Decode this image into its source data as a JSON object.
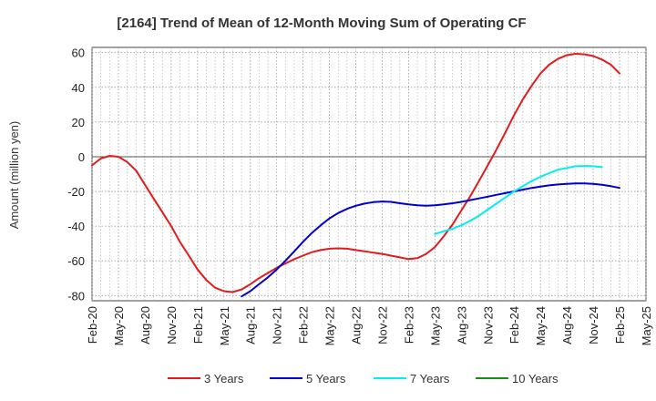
{
  "chart_data": {
    "type": "line",
    "title": "[2164]  Trend of Mean of 12-Month Moving Sum of Operating CF",
    "xlabel": "",
    "ylabel": "Amount (million yen)",
    "ylim": [
      -83,
      63
    ],
    "yticks": [
      60,
      40,
      20,
      0,
      -20,
      -40,
      -60,
      -80
    ],
    "grid": true,
    "legend_position": "bottom",
    "x_labels": [
      "Feb-20",
      "May-20",
      "Aug-20",
      "Nov-20",
      "Feb-21",
      "May-21",
      "Aug-21",
      "Nov-21",
      "Feb-22",
      "May-22",
      "Aug-22",
      "Nov-22",
      "Feb-23",
      "May-23",
      "Aug-23",
      "Nov-23",
      "Feb-24",
      "May-24",
      "Aug-24",
      "Nov-24",
      "Feb-25",
      "May-25"
    ],
    "series": [
      {
        "name": "3 Years",
        "color": "#e31a1c",
        "points": [
          [
            0,
            -5
          ],
          [
            0.33,
            -1
          ],
          [
            0.67,
            0.5
          ],
          [
            1,
            0
          ],
          [
            1.33,
            -3
          ],
          [
            1.67,
            -8
          ],
          [
            2,
            -16
          ],
          [
            2.33,
            -24
          ],
          [
            2.67,
            -32
          ],
          [
            3,
            -40
          ],
          [
            3.33,
            -49
          ],
          [
            3.67,
            -57
          ],
          [
            4,
            -65
          ],
          [
            4.33,
            -71
          ],
          [
            4.67,
            -75.5
          ],
          [
            5,
            -77.5
          ],
          [
            5.33,
            -78
          ],
          [
            5.67,
            -76.5
          ],
          [
            6,
            -73.5
          ],
          [
            6.33,
            -70
          ],
          [
            6.67,
            -67
          ],
          [
            7,
            -64
          ],
          [
            7.33,
            -61.5
          ],
          [
            7.67,
            -59
          ],
          [
            8,
            -57
          ],
          [
            8.33,
            -55
          ],
          [
            8.67,
            -53.8
          ],
          [
            9,
            -53
          ],
          [
            9.33,
            -52.8
          ],
          [
            9.67,
            -53
          ],
          [
            10,
            -53.8
          ],
          [
            10.33,
            -54.5
          ],
          [
            10.67,
            -55.3
          ],
          [
            11,
            -56
          ],
          [
            11.33,
            -57
          ],
          [
            11.67,
            -58
          ],
          [
            12,
            -59
          ],
          [
            12.33,
            -58.5
          ],
          [
            12.67,
            -56
          ],
          [
            13,
            -52
          ],
          [
            13.33,
            -46
          ],
          [
            13.67,
            -39
          ],
          [
            14,
            -31
          ],
          [
            14.33,
            -23
          ],
          [
            14.67,
            -14
          ],
          [
            15,
            -5
          ],
          [
            15.33,
            4
          ],
          [
            15.67,
            14
          ],
          [
            16,
            24
          ],
          [
            16.33,
            33
          ],
          [
            16.67,
            41
          ],
          [
            17,
            48
          ],
          [
            17.33,
            53
          ],
          [
            17.67,
            56.5
          ],
          [
            18,
            58.5
          ],
          [
            18.33,
            59.3
          ],
          [
            18.67,
            59
          ],
          [
            19,
            58
          ],
          [
            19.33,
            56
          ],
          [
            19.67,
            53
          ],
          [
            20,
            48
          ]
        ]
      },
      {
        "name": "5 Years",
        "color": "#0000cc",
        "points": [
          [
            5.67,
            -80.5
          ],
          [
            6,
            -77.5
          ],
          [
            6.33,
            -73.5
          ],
          [
            6.67,
            -69.5
          ],
          [
            7,
            -65
          ],
          [
            7.33,
            -60
          ],
          [
            7.67,
            -54.5
          ],
          [
            8,
            -49
          ],
          [
            8.33,
            -44
          ],
          [
            8.67,
            -39.5
          ],
          [
            9,
            -35.5
          ],
          [
            9.33,
            -32.5
          ],
          [
            9.67,
            -30
          ],
          [
            10,
            -28.3
          ],
          [
            10.33,
            -27
          ],
          [
            10.67,
            -26.2
          ],
          [
            11,
            -25.8
          ],
          [
            11.33,
            -26
          ],
          [
            11.67,
            -26.8
          ],
          [
            12,
            -27.5
          ],
          [
            12.33,
            -28
          ],
          [
            12.67,
            -28.2
          ],
          [
            13,
            -28
          ],
          [
            13.33,
            -27.5
          ],
          [
            13.67,
            -26.8
          ],
          [
            14,
            -26
          ],
          [
            14.33,
            -25
          ],
          [
            14.67,
            -24
          ],
          [
            15,
            -23
          ],
          [
            15.33,
            -22
          ],
          [
            15.67,
            -21
          ],
          [
            16,
            -20
          ],
          [
            16.33,
            -19
          ],
          [
            16.67,
            -18
          ],
          [
            17,
            -17.2
          ],
          [
            17.33,
            -16.5
          ],
          [
            17.67,
            -16
          ],
          [
            18,
            -15.6
          ],
          [
            18.33,
            -15.4
          ],
          [
            18.67,
            -15.4
          ],
          [
            19,
            -15.6
          ],
          [
            19.33,
            -16.2
          ],
          [
            19.67,
            -17
          ],
          [
            20,
            -18
          ]
        ]
      },
      {
        "name": "7 Years",
        "color": "#00eeee",
        "points": [
          [
            13,
            -44.5
          ],
          [
            13.33,
            -43
          ],
          [
            13.67,
            -41.5
          ],
          [
            14,
            -39.5
          ],
          [
            14.33,
            -37
          ],
          [
            14.67,
            -34
          ],
          [
            15,
            -30.5
          ],
          [
            15.33,
            -27
          ],
          [
            15.67,
            -23.5
          ],
          [
            16,
            -20
          ],
          [
            16.33,
            -17
          ],
          [
            16.67,
            -14
          ],
          [
            17,
            -11.5
          ],
          [
            17.33,
            -9.5
          ],
          [
            17.67,
            -7.5
          ],
          [
            18,
            -6.5
          ],
          [
            18.33,
            -5.5
          ],
          [
            18.67,
            -5.3
          ],
          [
            19,
            -5.5
          ],
          [
            19.33,
            -6
          ]
        ]
      },
      {
        "name": "10 Years",
        "color": "#1a8a1a",
        "points": []
      }
    ]
  }
}
